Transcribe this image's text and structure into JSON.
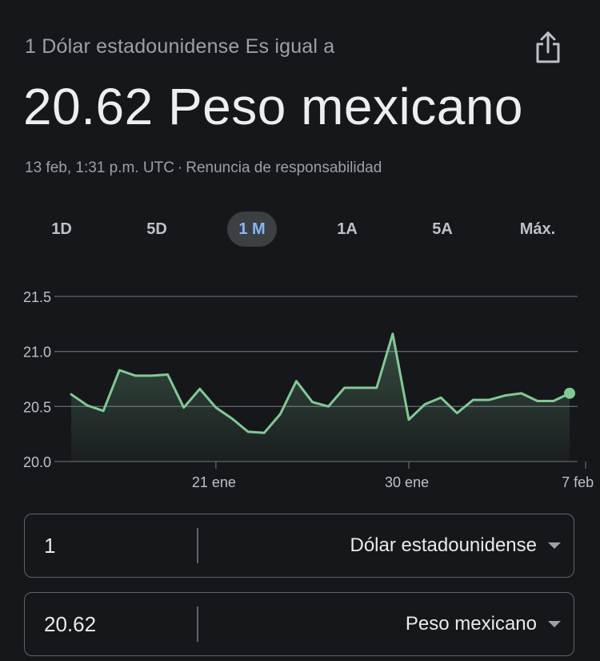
{
  "header": {
    "subtitle": "1 Dólar estadounidense Es igual a",
    "result": "20.62 Peso mexicano",
    "timestamp": "13 feb, 1:31 p.m. UTC",
    "separator": "·",
    "disclaimer": "Renuncia de responsabilidad",
    "share_icon": "share-icon"
  },
  "range_tabs": [
    {
      "label": "1D",
      "active": false
    },
    {
      "label": "5D",
      "active": false
    },
    {
      "label": "1 M",
      "active": true
    },
    {
      "label": "1A",
      "active": false
    },
    {
      "label": "5A",
      "active": false
    },
    {
      "label": "Máx.",
      "active": false
    }
  ],
  "chart_data": {
    "type": "area",
    "ylim": [
      20.0,
      21.5
    ],
    "y_ticks": [
      "21.5",
      "21.0",
      "20.5",
      "20.0"
    ],
    "x_ticks": [
      {
        "label": "21 ene",
        "index": 9
      },
      {
        "label": "30 ene",
        "index": 21
      },
      {
        "label": "7 feb",
        "index": 32
      }
    ],
    "grid": true,
    "line_color": "#81c995",
    "values": [
      20.61,
      20.51,
      20.46,
      20.83,
      20.78,
      20.78,
      20.79,
      20.49,
      20.66,
      20.49,
      20.39,
      20.27,
      20.26,
      20.43,
      20.73,
      20.54,
      20.5,
      20.67,
      20.67,
      20.67,
      21.16,
      20.38,
      20.52,
      20.58,
      20.44,
      20.56,
      20.56,
      20.6,
      20.62,
      20.55,
      20.55,
      20.62
    ]
  },
  "converter": {
    "from": {
      "amount": "1",
      "currency": "Dólar estadounidense"
    },
    "to": {
      "amount": "20.62",
      "currency": "Peso mexicano"
    }
  }
}
